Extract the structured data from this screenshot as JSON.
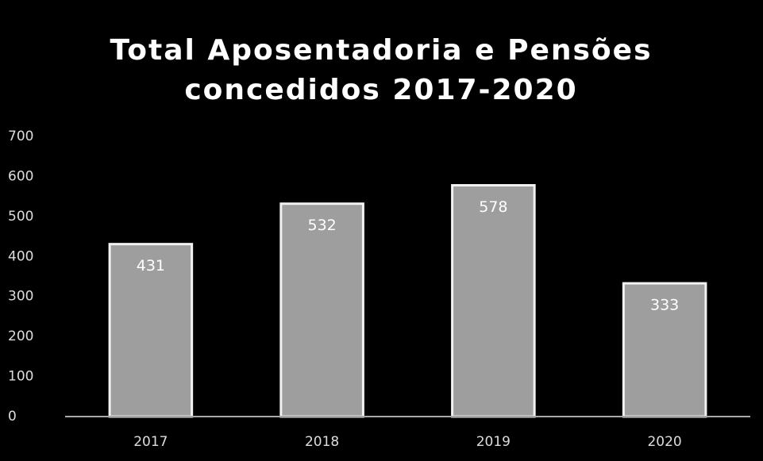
{
  "chart_data": {
    "type": "bar",
    "title": [
      "Total Aposentadoria e Pensões",
      "concedidos 2017-2020"
    ],
    "categories": [
      "2017",
      "2018",
      "2019",
      "2020"
    ],
    "values": [
      431,
      532,
      578,
      333
    ],
    "color": "#9e9e9e",
    "ylim": [
      0,
      700
    ],
    "yticks": [
      0,
      100,
      200,
      300,
      400,
      500,
      600,
      700
    ],
    "grid": false
  }
}
